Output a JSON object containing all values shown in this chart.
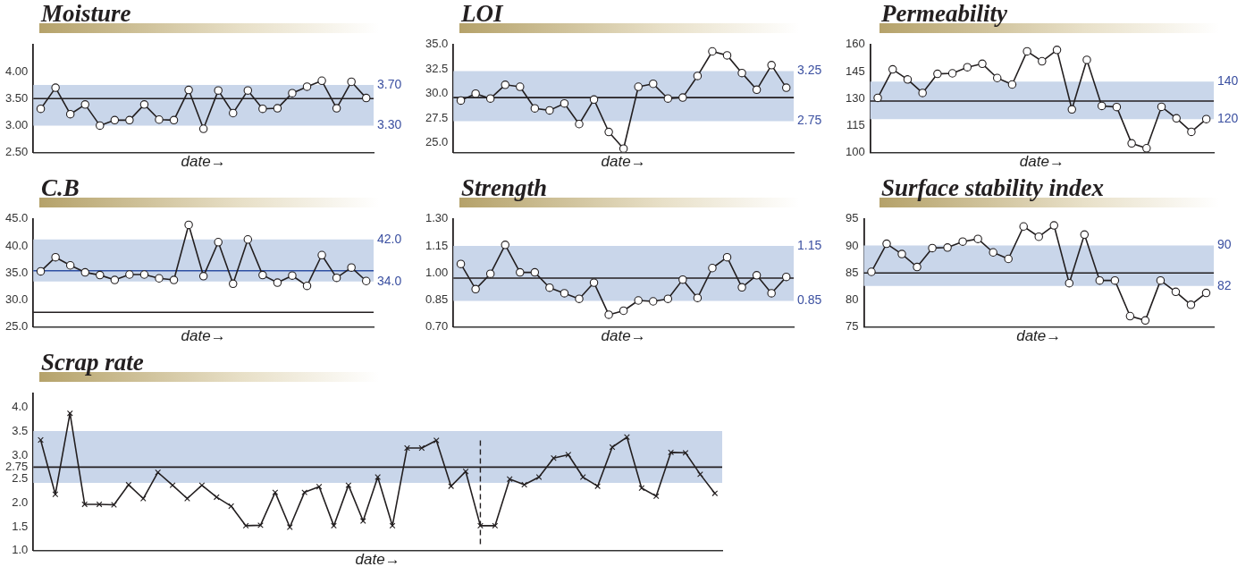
{
  "chart_data": [
    {
      "type": "line",
      "title": "Moisture",
      "xlabel": "date→",
      "categories": [
        null,
        null,
        null,
        null,
        null,
        null,
        null,
        null,
        null,
        null,
        null,
        null,
        null,
        null,
        null,
        null,
        null,
        null,
        null,
        null,
        null,
        null,
        null
      ],
      "values": [
        3.31,
        3.7,
        3.21,
        3.39,
        3.0,
        3.1,
        3.1,
        3.39,
        3.11,
        3.1,
        3.66,
        2.94,
        3.65,
        3.23,
        3.65,
        3.31,
        3.32,
        3.6,
        3.72,
        3.83,
        3.32,
        3.81,
        3.51
      ],
      "color": "#231f20",
      "marker": "circle",
      "tick_labels": "y",
      "ylim": [
        2.5,
        4.5
      ],
      "yticks": [
        {
          "value": 2.5,
          "label": "2.50"
        },
        {
          "value": 3,
          "label": "3.00"
        },
        {
          "value": 3.5,
          "label": "3.50"
        },
        {
          "value": 4,
          "label": "4.00"
        }
      ],
      "bands": [
        {
          "axis": "y",
          "from": 3.0,
          "to": 3.75,
          "color": "#c9d6ea"
        }
      ],
      "ref_lines": [
        {
          "axis": "y",
          "value": 3.5,
          "color": "#231f20"
        }
      ],
      "annotations": [
        "3.70",
        "3.30"
      ]
    },
    {
      "type": "line",
      "title": "LOI",
      "xlabel": "date→",
      "categories": [
        null,
        null,
        null,
        null,
        null,
        null,
        null,
        null,
        null,
        null,
        null,
        null,
        null,
        null,
        null,
        null,
        null,
        null,
        null,
        null,
        null,
        null,
        null
      ],
      "values": [
        29.3,
        30.0,
        29.5,
        30.9,
        30.7,
        28.5,
        28.3,
        29.0,
        26.9,
        29.4,
        26.1,
        24.4,
        30.7,
        31.0,
        29.5,
        29.6,
        31.8,
        34.3,
        33.9,
        32.1,
        30.4,
        32.9,
        30.6
      ],
      "color": "#231f20",
      "marker": "circle",
      "tick_labels": "y",
      "ylim": [
        24,
        35
      ],
      "yticks": [
        {
          "value": 25,
          "label": "25.0"
        },
        {
          "value": 27.5,
          "label": "27.5"
        },
        {
          "value": 30,
          "label": "30.0"
        },
        {
          "value": 32.5,
          "label": "32.5"
        },
        {
          "value": 35,
          "label": "35.0"
        }
      ],
      "bands": [
        {
          "axis": "y",
          "from": 27.2,
          "to": 32.3,
          "color": "#c9d6ea"
        }
      ],
      "ref_lines": [
        {
          "axis": "y",
          "value": 29.6,
          "color": "#231f20"
        }
      ],
      "annotations": [
        "3.25",
        "2.75"
      ]
    },
    {
      "type": "line",
      "title": "Permeability",
      "xlabel": "date→",
      "categories": [
        null,
        null,
        null,
        null,
        null,
        null,
        null,
        null,
        null,
        null,
        null,
        null,
        null,
        null,
        null,
        null,
        null,
        null,
        null,
        null,
        null,
        null,
        null
      ],
      "values": [
        130.4,
        146.2,
        140.6,
        133.1,
        143.7,
        144.0,
        147.4,
        149.3,
        141.4,
        137.8,
        156.2,
        150.7,
        157.0,
        124.0,
        151.5,
        125.9,
        125.3,
        105.1,
        102.4,
        125.4,
        119.0,
        111.5,
        118.6
      ],
      "color": "#231f20",
      "marker": "circle",
      "tick_labels": "y",
      "ylim": [
        100,
        160
      ],
      "yticks": [
        100,
        115,
        130,
        145,
        160
      ],
      "bands": [
        {
          "axis": "y",
          "from": 118.6,
          "to": 139.4,
          "color": "#c9d6ea"
        }
      ],
      "ref_lines": [
        {
          "axis": "y",
          "value": 128.6,
          "color": "#231f20"
        }
      ],
      "annotations": [
        "140",
        "120"
      ]
    },
    {
      "type": "line",
      "title": "C.B",
      "xlabel": "date→",
      "categories": [
        null,
        null,
        null,
        null,
        null,
        null,
        null,
        null,
        null,
        null,
        null,
        null,
        null,
        null,
        null,
        null,
        null,
        null,
        null,
        null,
        null,
        null,
        null
      ],
      "values": [
        35.3,
        37.9,
        36.4,
        35.1,
        34.6,
        33.7,
        34.7,
        34.7,
        34.0,
        33.7,
        43.9,
        34.4,
        40.7,
        33.0,
        41.2,
        34.6,
        33.2,
        34.5,
        32.6,
        38.3,
        34.1,
        36.0,
        33.5
      ],
      "color": "#231f20",
      "marker": "circle",
      "tick_labels": "y",
      "ylim": [
        25,
        45
      ],
      "yticks": [
        {
          "value": 25,
          "label": "25.0"
        },
        {
          "value": 30,
          "label": "30.0"
        },
        {
          "value": 35,
          "label": "35.0"
        },
        {
          "value": 40,
          "label": "40.0"
        },
        {
          "value": 45,
          "label": "45.0"
        }
      ],
      "bands": [
        {
          "axis": "y",
          "from": 33.4,
          "to": 41.2,
          "color": "#c9d6ea"
        }
      ],
      "ref_lines": [
        {
          "axis": "y",
          "value": 35.4,
          "color": "#2e4fa3"
        },
        {
          "axis": "y",
          "value": 27.7,
          "color": "#231f20"
        }
      ],
      "annotations": [
        "42.0",
        "34.0"
      ]
    },
    {
      "type": "line",
      "title": "Strength",
      "xlabel": "date→",
      "categories": [
        null,
        null,
        null,
        null,
        null,
        null,
        null,
        null,
        null,
        null,
        null,
        null,
        null,
        null,
        null,
        null,
        null,
        null,
        null,
        null,
        null,
        null,
        null
      ],
      "values": [
        1.05,
        0.91,
        0.995,
        1.156,
        1.003,
        1.003,
        0.918,
        0.887,
        0.856,
        0.946,
        0.768,
        0.79,
        0.847,
        0.842,
        0.856,
        0.963,
        0.861,
        1.027,
        1.087,
        0.92,
        0.987,
        0.887,
        0.978
      ],
      "color": "#231f20",
      "marker": "circle",
      "tick_labels": "y",
      "ylim": [
        0.7,
        1.3
      ],
      "yticks": [
        {
          "value": 0.7,
          "label": "0.70"
        },
        {
          "value": 0.85,
          "label": "0.85"
        },
        {
          "value": 1,
          "label": "1.00"
        },
        {
          "value": 1.15,
          "label": "1.15"
        },
        {
          "value": 1.3,
          "label": "1.30"
        }
      ],
      "bands": [
        {
          "axis": "y",
          "from": 0.844,
          "to": 1.15,
          "color": "#c9d6ea"
        }
      ],
      "ref_lines": [
        {
          "axis": "y",
          "value": 0.971,
          "color": "#231f20"
        }
      ],
      "annotations": [
        "1.15",
        "0.85"
      ]
    },
    {
      "type": "line",
      "title": "Surface stability index",
      "xlabel": "date→",
      "categories": [
        null,
        null,
        null,
        null,
        null,
        null,
        null,
        null,
        null,
        null,
        null,
        null,
        null,
        null,
        null,
        null,
        null,
        null,
        null,
        null,
        null,
        null,
        null
      ],
      "values": [
        85.2,
        90.4,
        88.5,
        86.1,
        89.6,
        89.7,
        90.8,
        91.3,
        88.8,
        87.6,
        93.6,
        91.7,
        93.8,
        83.1,
        92.1,
        83.6,
        83.6,
        77.0,
        76.2,
        83.6,
        81.5,
        79.1,
        81.3
      ],
      "color": "#231f20",
      "marker": "circle",
      "tick_labels": "y",
      "ylim": [
        75,
        95
      ],
      "yticks": [
        75,
        80,
        85,
        90,
        95
      ],
      "bands": [
        {
          "axis": "y",
          "from": 82.6,
          "to": 90.1,
          "color": "#c9d6ea"
        }
      ],
      "ref_lines": [
        {
          "axis": "y",
          "value": 85.0,
          "color": "#231f20"
        }
      ],
      "annotations": [
        "90",
        "82"
      ]
    },
    {
      "type": "line",
      "title": "Scrap rate",
      "xlabel": "date→",
      "categories": [
        null,
        null,
        null,
        null,
        null,
        null,
        null,
        null,
        null,
        null,
        null,
        null,
        null,
        null,
        null,
        null,
        null,
        null,
        null,
        null,
        null,
        null,
        null,
        null,
        null,
        null,
        null,
        null,
        null,
        null,
        null,
        null,
        null,
        null,
        null,
        null,
        null,
        null,
        null,
        null,
        null,
        null,
        null,
        null,
        null,
        null,
        null
      ],
      "values": [
        3.32,
        2.18,
        3.88,
        1.97,
        1.97,
        1.96,
        2.38,
        2.09,
        2.64,
        2.37,
        2.09,
        2.37,
        2.12,
        1.93,
        1.52,
        1.53,
        2.22,
        1.49,
        2.22,
        2.34,
        1.52,
        2.37,
        1.62,
        2.54,
        1.52,
        3.15,
        3.15,
        3.31,
        2.35,
        2.66,
        1.52,
        1.52,
        2.5,
        2.38,
        2.54,
        2.94,
        3.01,
        2.54,
        2.35,
        3.17,
        3.38,
        2.31,
        2.14,
        3.06,
        3.05,
        2.6,
        2.2
      ],
      "color": "#231f20",
      "marker": "cross",
      "tick_labels": "y",
      "ylim": [
        1,
        4.3
      ],
      "yticks": [
        {
          "value": 1,
          "label": "1.0"
        },
        {
          "value": 1.5,
          "label": "1.5"
        },
        {
          "value": 2,
          "label": "2.0"
        },
        {
          "value": 2.5,
          "label": "2.5"
        },
        2.75,
        {
          "value": 3,
          "label": "3.0"
        },
        {
          "value": 3.5,
          "label": "3.5"
        },
        {
          "value": 4,
          "label": "4.0"
        }
      ],
      "bands": [
        {
          "axis": "y",
          "from": 2.42,
          "to": 3.51,
          "color": "#c9d6ea"
        }
      ],
      "ref_lines": [
        {
          "axis": "y",
          "value": 2.75,
          "color": "#231f20"
        }
      ]
    }
  ]
}
